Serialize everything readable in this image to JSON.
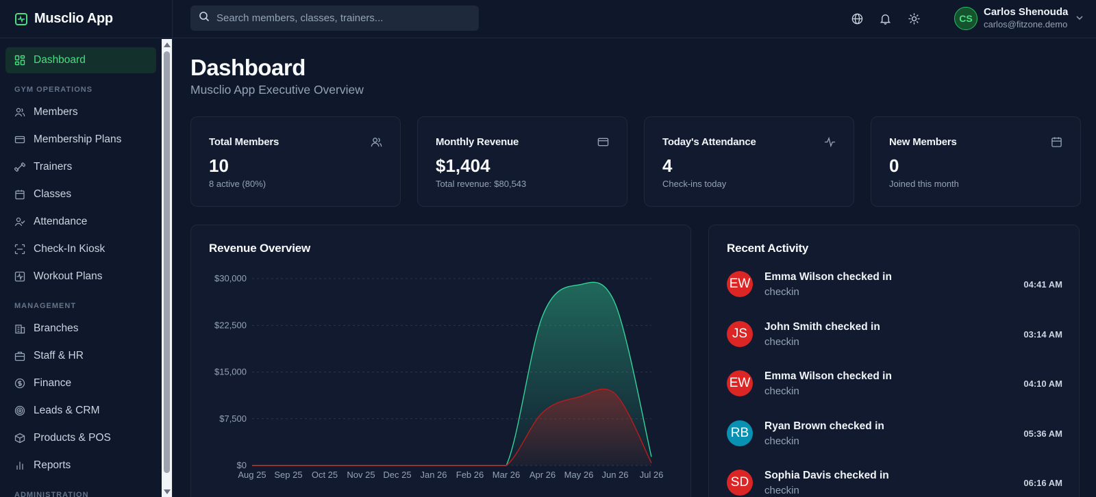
{
  "app": {
    "title": "Musclio App"
  },
  "sidebar": {
    "active": {
      "label": "Dashboard",
      "icon": "dashboard-icon"
    },
    "sections": [
      {
        "heading": "GYM OPERATIONS",
        "items": [
          {
            "label": "Members",
            "icon": "users-icon"
          },
          {
            "label": "Membership Plans",
            "icon": "card-icon"
          },
          {
            "label": "Trainers",
            "icon": "dumbbell-icon"
          },
          {
            "label": "Classes",
            "icon": "calendar-icon"
          },
          {
            "label": "Attendance",
            "icon": "user-check-icon"
          },
          {
            "label": "Check-In Kiosk",
            "icon": "scan-icon"
          },
          {
            "label": "Workout Plans",
            "icon": "activity-square-icon"
          }
        ]
      },
      {
        "heading": "MANAGEMENT",
        "items": [
          {
            "label": "Branches",
            "icon": "building-icon"
          },
          {
            "label": "Staff & HR",
            "icon": "briefcase-icon"
          },
          {
            "label": "Finance",
            "icon": "dollar-circle-icon"
          },
          {
            "label": "Leads & CRM",
            "icon": "target-icon"
          },
          {
            "label": "Products & POS",
            "icon": "package-icon"
          },
          {
            "label": "Reports",
            "icon": "bar-chart-icon"
          }
        ]
      },
      {
        "heading": "ADMINISTRATION",
        "items": []
      }
    ]
  },
  "header": {
    "search_placeholder": "Search members, classes, trainers...",
    "user": {
      "initials": "CS",
      "name": "Carlos Shenouda",
      "email": "carlos@fitzone.demo"
    }
  },
  "page": {
    "title": "Dashboard",
    "subtitle": "Musclio App Executive Overview"
  },
  "stats": [
    {
      "label": "Total Members",
      "value": "10",
      "note": "8 active (80%)",
      "icon": "users-icon"
    },
    {
      "label": "Monthly Revenue",
      "value": "$1,404",
      "note": "Total revenue: $80,543",
      "icon": "card-icon"
    },
    {
      "label": "Today's Attendance",
      "value": "4",
      "note": "Check-ins today",
      "icon": "activity-icon"
    },
    {
      "label": "New Members",
      "value": "0",
      "note": "Joined this month",
      "icon": "calendar-icon"
    }
  ],
  "revenue": {
    "title": "Revenue Overview"
  },
  "chart_data": {
    "type": "area",
    "title": "Revenue Overview",
    "xlabel": "",
    "ylabel": "",
    "categories": [
      "Aug 25",
      "Sep 25",
      "Oct 25",
      "Nov 25",
      "Dec 25",
      "Jan 26",
      "Feb 26",
      "Mar 26",
      "Apr 26",
      "May 26",
      "Jun 26",
      "Jul 26"
    ],
    "ylim": [
      0,
      30000
    ],
    "yticks": [
      "$0",
      "$7,500",
      "$15,000",
      "$22,500",
      "$30,000"
    ],
    "yticks_values": [
      0,
      7500,
      15000,
      22500,
      30000
    ],
    "grid": true,
    "series": [
      {
        "values": [
          0,
          0,
          0,
          0,
          0,
          0,
          0,
          0,
          24000,
          29000,
          26000,
          1400
        ],
        "color": "#34d399"
      },
      {
        "values": [
          0,
          0,
          0,
          0,
          0,
          0,
          0,
          0,
          8500,
          11000,
          11500,
          400
        ],
        "color": "#b91c1c"
      }
    ]
  },
  "activity": {
    "title": "Recent Activity",
    "items": [
      {
        "initials": "EW",
        "title": "Emma Wilson checked in",
        "sub": "checkin",
        "time": "04:41 AM",
        "color": "#dc2626"
      },
      {
        "initials": "JS",
        "title": "John Smith checked in",
        "sub": "checkin",
        "time": "03:14 AM",
        "color": "#dc2626"
      },
      {
        "initials": "EW",
        "title": "Emma Wilson checked in",
        "sub": "checkin",
        "time": "04:10 AM",
        "color": "#dc2626"
      },
      {
        "initials": "RB",
        "title": "Ryan Brown checked in",
        "sub": "checkin",
        "time": "05:36 AM",
        "color": "#0891b2"
      },
      {
        "initials": "SD",
        "title": "Sophia Davis checked in",
        "sub": "checkin",
        "time": "06:16 AM",
        "color": "#dc2626"
      }
    ]
  }
}
